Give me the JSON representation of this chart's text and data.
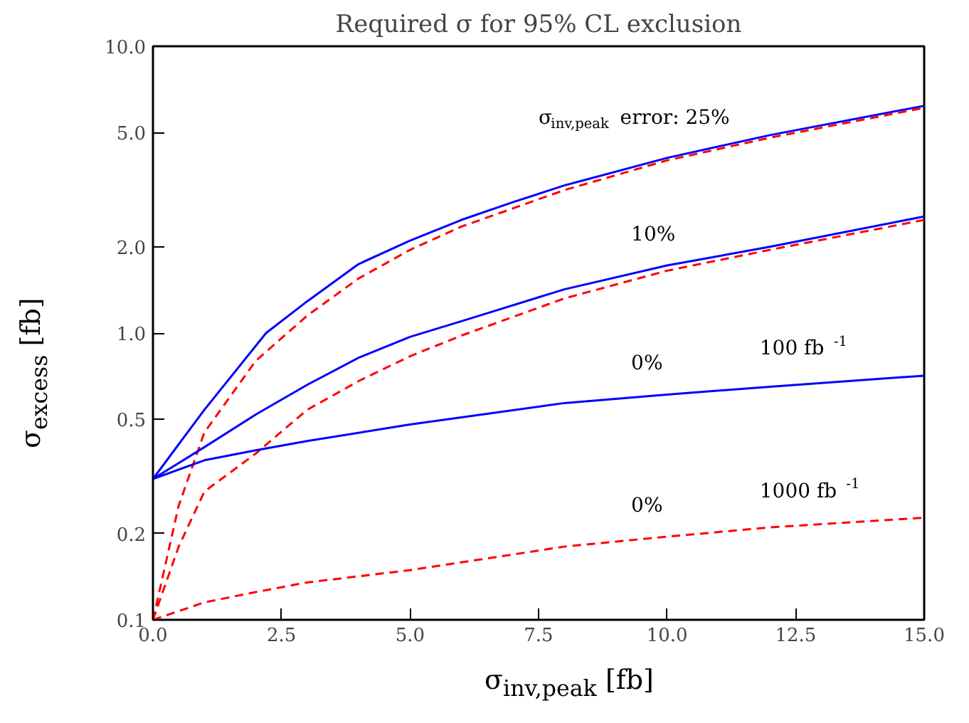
{
  "chart_data": {
    "type": "line",
    "title": "Required σ for 95% CL exclusion",
    "xlabel": "σ$_{inv,peak}$ [fb]",
    "ylabel": "σ$_{excess}$ [fb]",
    "log": "y",
    "grid": false,
    "marker": "none",
    "xlim": [
      0,
      15
    ],
    "ylim": [
      0.1,
      10
    ],
    "xticks": [
      {
        "value": 0,
        "label": "0.0"
      },
      {
        "value": 2.5,
        "label": "2.5"
      },
      {
        "value": 5,
        "label": "5.0"
      },
      {
        "value": 7.5,
        "label": "7.5"
      },
      {
        "value": 10,
        "label": "10.0"
      },
      {
        "value": 12.5,
        "label": "12.5"
      },
      {
        "value": 15,
        "label": "15.0"
      }
    ],
    "yticks": [
      0.1,
      0.2,
      0.5,
      {
        "value": 1,
        "label": "1.0"
      },
      {
        "value": 2,
        "label": "2.0"
      },
      {
        "value": 5,
        "label": "5.0"
      },
      {
        "value": 10,
        "label": "10.0"
      }
    ],
    "series": [
      {
        "color": "#0000ff",
        "line_style": "solid",
        "x": [
          0,
          1,
          2.2,
          3,
          4,
          5,
          6,
          7,
          8,
          10,
          12,
          15
        ],
        "values": [
          0.31,
          0.54,
          1.0,
          1.29,
          1.74,
          2.1,
          2.48,
          2.86,
          3.27,
          4.08,
          4.9,
          6.2
        ]
      },
      {
        "color": "#ff0000",
        "line_style": "dashed",
        "x": [
          0,
          0.5,
          1,
          2,
          3,
          4,
          5,
          6,
          8,
          10,
          12,
          15
        ],
        "values": [
          0.1,
          0.25,
          0.45,
          0.8,
          1.15,
          1.55,
          1.95,
          2.35,
          3.15,
          4.0,
          4.8,
          6.1
        ]
      },
      {
        "color": "#0000ff",
        "line_style": "solid",
        "x": [
          0,
          1,
          2,
          3,
          4,
          5,
          6,
          8,
          10,
          12,
          15
        ],
        "values": [
          0.31,
          0.4,
          0.52,
          0.66,
          0.82,
          0.97,
          1.1,
          1.42,
          1.72,
          2.0,
          2.55
        ]
      },
      {
        "color": "#ff0000",
        "line_style": "dashed",
        "x": [
          0,
          0.5,
          1,
          2,
          3,
          4,
          5,
          6,
          8,
          10,
          12,
          15
        ],
        "values": [
          0.1,
          0.18,
          0.28,
          0.38,
          0.54,
          0.68,
          0.83,
          0.98,
          1.32,
          1.65,
          1.95,
          2.48
        ]
      },
      {
        "color": "#0000ff",
        "line_style": "solid",
        "x": [
          0,
          1,
          2,
          3,
          5,
          8,
          10,
          12,
          15
        ],
        "values": [
          0.31,
          0.36,
          0.39,
          0.42,
          0.48,
          0.57,
          0.61,
          0.65,
          0.71
        ]
      },
      {
        "color": "#ff0000",
        "line_style": "dashed",
        "x": [
          0,
          1,
          2,
          3,
          5,
          8,
          10,
          12,
          15
        ],
        "values": [
          0.1,
          0.115,
          0.125,
          0.135,
          0.149,
          0.18,
          0.195,
          0.21,
          0.227
        ]
      }
    ],
    "annotations": [
      "σ$_{inv,peak}$ error: 25%",
      "10%",
      "0%",
      "100 fb$^{-1}$",
      "0%",
      "1000 fb$^{-1}$"
    ]
  }
}
